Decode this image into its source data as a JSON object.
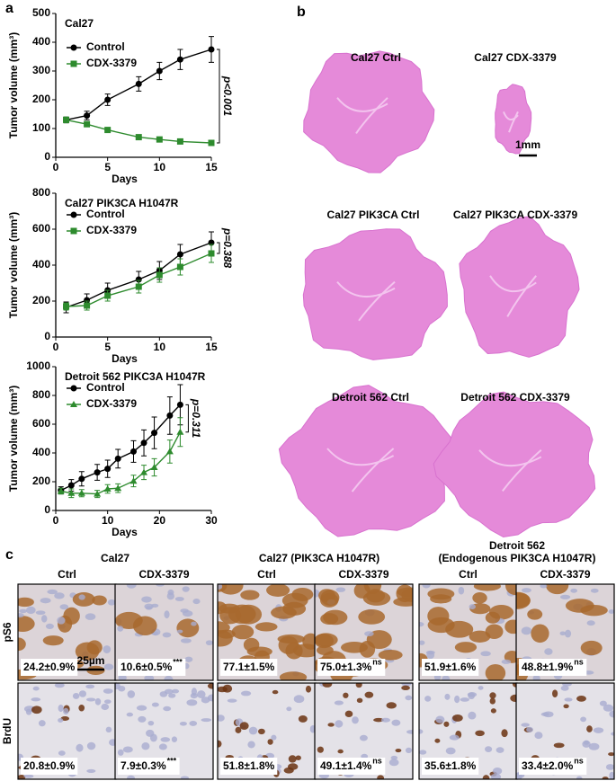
{
  "chart_data": [
    {
      "type": "line",
      "title": "Cal27",
      "xlabel": "Days",
      "ylabel": "Tumor volume (mm³)",
      "x": [
        1,
        3,
        5,
        8,
        10,
        12,
        15
      ],
      "xlim": [
        0,
        15
      ],
      "xticks": [
        0,
        5,
        10,
        15
      ],
      "ylim": [
        0,
        500
      ],
      "yticks": [
        0,
        100,
        200,
        300,
        400,
        500
      ],
      "series": [
        {
          "name": "Control",
          "color": "#000000",
          "marker": "circle",
          "values": [
            130,
            145,
            200,
            255,
            300,
            340,
            375
          ],
          "errors": [
            10,
            15,
            20,
            25,
            30,
            35,
            45
          ]
        },
        {
          "name": "CDX-3379",
          "color": "#2e8b2e",
          "marker": "square",
          "values": [
            130,
            115,
            95,
            70,
            62,
            55,
            50
          ],
          "errors": [
            10,
            8,
            8,
            6,
            6,
            5,
            5
          ]
        }
      ],
      "annotation": "p<0.001"
    },
    {
      "type": "line",
      "title": "Cal27 PIK3CA H1047R",
      "xlabel": "Days",
      "ylabel": "Tumor volume (mm³)",
      "x": [
        1,
        3,
        5,
        8,
        10,
        12,
        15
      ],
      "xlim": [
        0,
        15
      ],
      "xticks": [
        0,
        5,
        10,
        15
      ],
      "ylim": [
        0,
        800
      ],
      "yticks": [
        0,
        200,
        400,
        600,
        800
      ],
      "series": [
        {
          "name": "Control",
          "color": "#000000",
          "marker": "circle",
          "values": [
            165,
            205,
            260,
            320,
            370,
            460,
            525
          ],
          "errors": [
            30,
            35,
            40,
            45,
            50,
            55,
            60
          ]
        },
        {
          "name": "CDX-3379",
          "color": "#2e8b2e",
          "marker": "square",
          "values": [
            170,
            175,
            230,
            280,
            345,
            390,
            465
          ],
          "errors": [
            20,
            25,
            30,
            35,
            40,
            45,
            50
          ]
        }
      ],
      "annotation": "p=0.388"
    },
    {
      "type": "line",
      "title": "Detroit 562  PIKC3A H1047R",
      "xlabel": "Days",
      "ylabel": "Tumor volume (mm³)",
      "x": [
        1,
        3,
        5,
        8,
        10,
        12,
        15,
        17,
        19,
        22,
        24
      ],
      "xlim": [
        0,
        30
      ],
      "xticks": [
        0,
        10,
        20,
        30
      ],
      "ylim": [
        0,
        1000
      ],
      "yticks": [
        0,
        200,
        400,
        600,
        800,
        1000
      ],
      "series": [
        {
          "name": "Control",
          "color": "#000000",
          "marker": "circle",
          "values": [
            140,
            175,
            220,
            265,
            290,
            360,
            410,
            470,
            540,
            660,
            735
          ],
          "errors": [
            25,
            40,
            50,
            55,
            60,
            65,
            75,
            90,
            110,
            130,
            140
          ]
        },
        {
          "name": "CDX-3379",
          "color": "#2e8b2e",
          "marker": "triangle",
          "values": [
            135,
            120,
            120,
            115,
            150,
            155,
            205,
            265,
            300,
            410,
            545
          ],
          "errors": [
            20,
            30,
            25,
            25,
            30,
            30,
            40,
            50,
            60,
            80,
            100
          ]
        }
      ],
      "annotation": "p=0.311"
    }
  ],
  "panel_labels": [
    "a",
    "b",
    "c"
  ],
  "panel_b": {
    "images": [
      "Cal27 Ctrl",
      "Cal27 CDX-3379",
      "Cal27 PIK3CA Ctrl",
      "Cal27 PIK3CA CDX-3379",
      "Detroit 562 Ctrl",
      "Detroit 562 CDX-3379"
    ],
    "scale": "1mm"
  },
  "panel_c": {
    "groups": [
      [
        "Cal27"
      ],
      [
        "Cal27 (PIK3CA H1047R)"
      ],
      [
        "Detroit 562",
        "(Endogenous PIK3CA H1047R)"
      ]
    ],
    "columns": [
      "Ctrl",
      "CDX-3379",
      "Ctrl",
      "CDX-3379",
      "Ctrl",
      "CDX-3379"
    ],
    "scale": "25µm",
    "rows": [
      {
        "label": "pS6",
        "cells": [
          {
            "value": "24.2±0.9%"
          },
          {
            "value": "10.6±0.5%",
            "sig": "***"
          },
          {
            "value": "77.1±1.5%"
          },
          {
            "value": "75.0±1.3%",
            "sig": "ns"
          },
          {
            "value": "51.9±1.6%"
          },
          {
            "value": "48.8±1.9%",
            "sig": "ns"
          }
        ]
      },
      {
        "label": "BrdU",
        "cells": [
          {
            "value": "20.8±0.9%"
          },
          {
            "value": "7.9±0.3%",
            "sig": "***"
          },
          {
            "value": "51.8±1.8%"
          },
          {
            "value": "49.1±1.4%",
            "sig": "ns"
          },
          {
            "value": "35.6±1.8%"
          },
          {
            "value": "33.4±2.0%",
            "sig": "ns"
          }
        ]
      }
    ]
  }
}
